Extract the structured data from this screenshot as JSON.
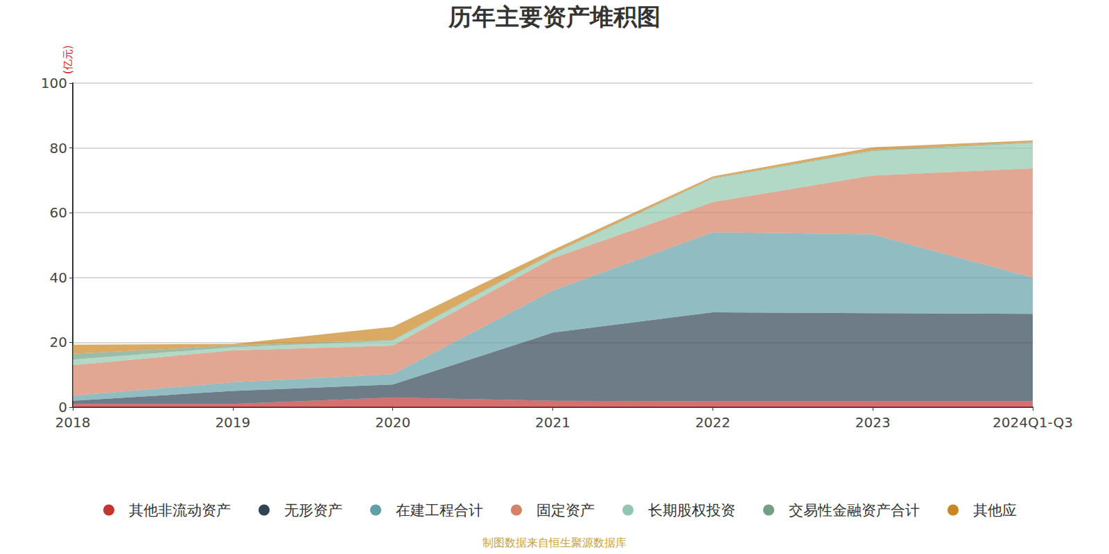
{
  "chart_data": {
    "type": "area",
    "title": "历年主要资产堆积图",
    "y_label": "(亿元)",
    "footnote": "制图数据来自恒生聚源数据库",
    "categories": [
      "2018",
      "2019",
      "2020",
      "2021",
      "2022",
      "2023",
      "2024Q1-Q3"
    ],
    "ylim": [
      0,
      100
    ],
    "yticks": [
      0,
      20,
      40,
      60,
      80,
      100
    ],
    "grid": true,
    "stacked": true,
    "legend": "bottom",
    "series": [
      {
        "name": "其他非流动资产",
        "color": "#c23531",
        "values": [
          1.0,
          1.0,
          3.0,
          2.0,
          1.8,
          1.8,
          1.8
        ]
      },
      {
        "name": "无形资产",
        "color": "#2f4554",
        "values": [
          1.0,
          4.0,
          4.0,
          21.0,
          27.5,
          27.2,
          27.0
        ]
      },
      {
        "name": "在建工程合计",
        "color": "#61a0a8",
        "values": [
          1.5,
          2.7,
          3.2,
          13.0,
          24.7,
          24.3,
          11.2
        ]
      },
      {
        "name": "固定资产",
        "color": "#d48265",
        "values": [
          9.5,
          9.8,
          8.8,
          10.0,
          9.3,
          18.2,
          33.7
        ]
      },
      {
        "name": "长期股权投资",
        "color": "#91c7ae",
        "values": [
          1.7,
          1.0,
          1.5,
          1.3,
          7.2,
          7.5,
          7.8
        ]
      },
      {
        "name": "交易性金融资产合计",
        "color": "#749f83",
        "values": [
          1.8,
          0.5,
          0.3,
          0.2,
          0.2,
          0.3,
          0.3
        ]
      },
      {
        "name": "其他应",
        "color": "#ca8622",
        "values": [
          2.8,
          0.5,
          4.0,
          1.0,
          0.5,
          0.9,
          0.5
        ]
      }
    ]
  }
}
